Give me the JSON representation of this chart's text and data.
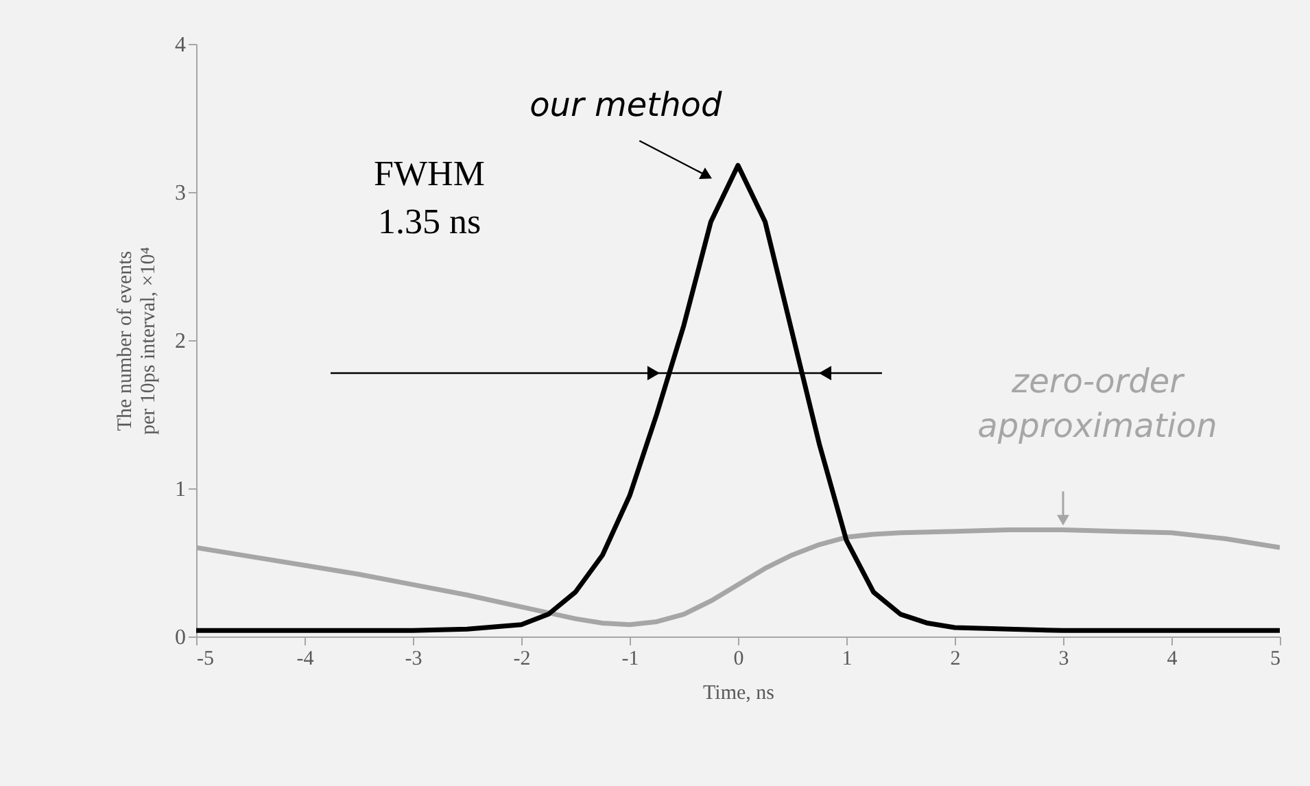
{
  "chart_data": {
    "type": "line",
    "xlabel": "Time, ns",
    "ylabel": "The number of events per 10ps interval, ×10⁴",
    "xlim": [
      -5,
      5
    ],
    "xticks": [
      -5,
      -4,
      -3,
      -2,
      -1,
      0,
      1,
      2,
      3,
      4,
      5
    ],
    "ylim": [
      0,
      4
    ],
    "yticks": [
      0,
      1,
      2,
      3,
      4
    ],
    "grid": false,
    "marker": "none",
    "line_style": "solid",
    "annotations": [
      {
        "text": "our method",
        "x": -0.15,
        "y": 3.05
      },
      "FWHM\n1.35 ns",
      {
        "text": "zero-order approximation",
        "x": 3,
        "y": 0.72
      }
    ],
    "series": [
      {
        "color": "#a6a6a6",
        "x": [
          -5,
          -4.5,
          -4,
          -3.5,
          -3,
          -2.5,
          -2,
          -1.5,
          -1.25,
          -1,
          -0.75,
          -0.5,
          -0.25,
          0,
          0.25,
          0.5,
          0.75,
          1,
          1.25,
          1.5,
          2,
          2.5,
          3,
          3.5,
          4,
          4.5,
          5
        ],
        "values": [
          0.6,
          0.54,
          0.48,
          0.42,
          0.35,
          0.28,
          0.2,
          0.12,
          0.09,
          0.08,
          0.1,
          0.15,
          0.24,
          0.35,
          0.46,
          0.55,
          0.62,
          0.67,
          0.69,
          0.7,
          0.71,
          0.72,
          0.72,
          0.71,
          0.7,
          0.66,
          0.6
        ]
      },
      {
        "color": "#000000",
        "x": [
          -5,
          -4,
          -3,
          -2.5,
          -2,
          -1.75,
          -1.5,
          -1.25,
          -1,
          -0.75,
          -0.5,
          -0.25,
          0,
          0.25,
          0.5,
          0.75,
          1,
          1.25,
          1.5,
          1.75,
          2,
          2.5,
          3,
          4,
          5
        ],
        "values": [
          0.04,
          0.04,
          0.04,
          0.05,
          0.08,
          0.15,
          0.3,
          0.55,
          0.95,
          1.5,
          2.1,
          2.8,
          3.18,
          2.8,
          2.05,
          1.3,
          0.65,
          0.3,
          0.15,
          0.09,
          0.06,
          0.05,
          0.04,
          0.04,
          0.04
        ]
      }
    ]
  }
}
